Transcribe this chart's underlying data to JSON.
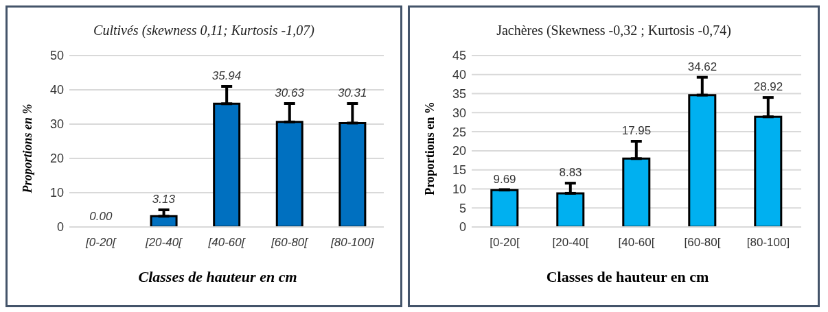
{
  "chart_data": [
    {
      "type": "bar",
      "title": "Cultivés (skewness 0,11; Kurtosis -1,07)",
      "xlabel": "Classes de hauteur en cm",
      "ylabel": "Proportions en %",
      "categories": [
        "[0-20[",
        "[20-40[",
        "[40-60[",
        "[60-80[",
        "[80-100]"
      ],
      "values": [
        0,
        3.13,
        35.94,
        30.63,
        30.31
      ],
      "color": "#0070c0",
      "errors": [
        null,
        [
          3.13,
          5
        ],
        [
          35.94,
          41
        ],
        [
          30.63,
          36
        ],
        [
          30.31,
          36
        ]
      ],
      "ylim": [
        0,
        50
      ],
      "yticks": [
        0,
        10,
        20,
        30,
        40,
        50
      ],
      "grid": "y",
      "legend": false,
      "value_labels": [
        "0.00",
        "3.13",
        "35.94",
        "30.63",
        "30.31"
      ]
    },
    {
      "type": "bar",
      "title": "Jachères (Skewness -0,32 ; Kurtosis -0,74)",
      "xlabel": "Classes de hauteur en cm",
      "ylabel": "Proportions en %",
      "categories": [
        "[0-20[",
        "[20-40[",
        "[40-60[",
        "[60-80[",
        "[80-100]"
      ],
      "values": [
        9.69,
        8.83,
        17.95,
        34.62,
        28.92
      ],
      "color": "#00b0f0",
      "errors": [
        [
          9.69,
          9.8
        ],
        [
          8.83,
          11.5
        ],
        [
          17.95,
          22.5
        ],
        [
          34.62,
          39.3
        ],
        [
          28.92,
          34
        ]
      ],
      "ylim": [
        0,
        45
      ],
      "yticks": [
        0,
        5,
        10,
        15,
        20,
        25,
        30,
        35,
        40,
        45
      ],
      "grid": "y",
      "legend": false,
      "data_labels": true
    }
  ]
}
